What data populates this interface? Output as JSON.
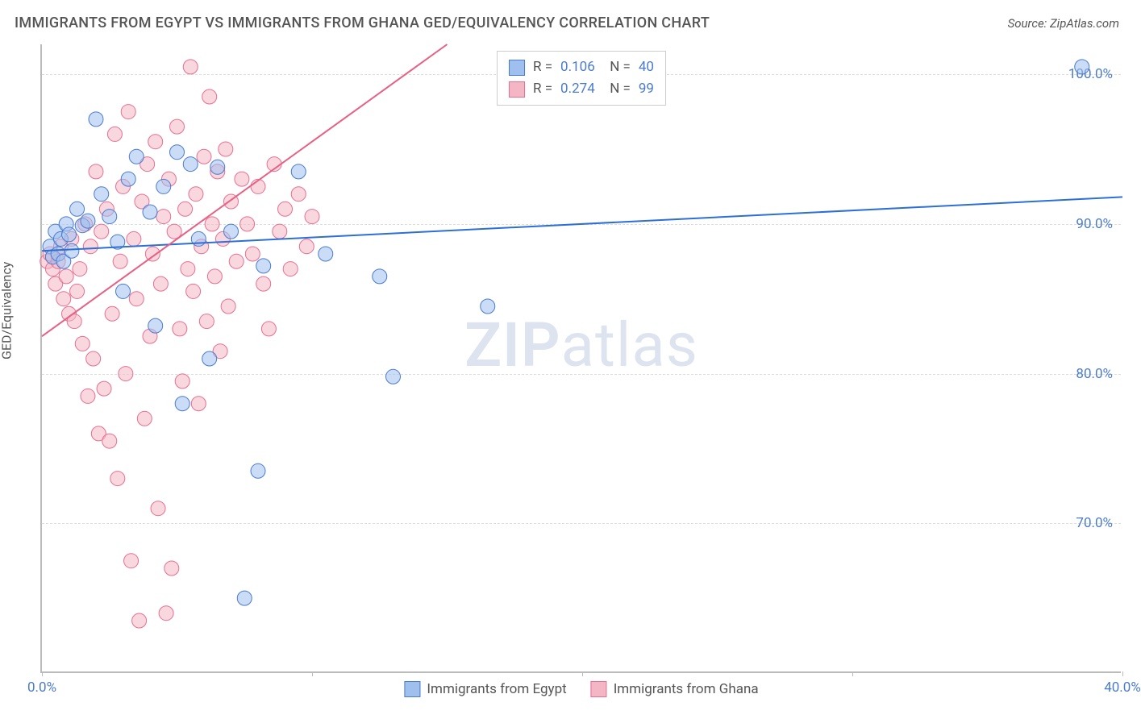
{
  "title": "IMMIGRANTS FROM EGYPT VS IMMIGRANTS FROM GHANA GED/EQUIVALENCY CORRELATION CHART",
  "source": "Source: ZipAtlas.com",
  "watermark_parts": [
    "ZIP",
    "atlas"
  ],
  "chart": {
    "type": "scatter",
    "y_axis_label": "GED/Equivalency",
    "background_color": "#ffffff",
    "grid_color": "#dddddd",
    "axis_color": "#bbbbbb",
    "tick_label_color": "#4a7bd0",
    "xlim": [
      0,
      40
    ],
    "ylim": [
      60,
      102
    ],
    "y_ticks": [
      70,
      80,
      90,
      100
    ],
    "y_tick_labels": [
      "70.0%",
      "80.0%",
      "90.0%",
      "100.0%"
    ],
    "x_ticks": [
      0,
      40
    ],
    "x_tick_labels": [
      "0.0%",
      "40.0%"
    ],
    "x_tick_marks": [
      0,
      10,
      20,
      30,
      40
    ],
    "marker_radius": 9,
    "marker_opacity": 0.55,
    "line_width": 2,
    "series": [
      {
        "name": "Immigrants from Egypt",
        "color_fill": "#9fc0ef",
        "color_stroke": "#4a7bd0",
        "line_color": "#2e6fd6",
        "R": "0.106",
        "N": "40",
        "trend": {
          "x1": 0,
          "y1": 88.2,
          "x2": 40,
          "y2": 91.8
        },
        "points": [
          [
            0.3,
            88.5
          ],
          [
            0.4,
            87.8
          ],
          [
            0.5,
            89.5
          ],
          [
            0.6,
            88.0
          ],
          [
            0.7,
            89.0
          ],
          [
            0.8,
            87.5
          ],
          [
            0.9,
            90.0
          ],
          [
            1.0,
            89.3
          ],
          [
            1.1,
            88.2
          ],
          [
            1.3,
            91.0
          ],
          [
            1.5,
            89.9
          ],
          [
            1.7,
            90.2
          ],
          [
            2.0,
            97.0
          ],
          [
            2.2,
            92.0
          ],
          [
            2.5,
            90.5
          ],
          [
            2.8,
            88.8
          ],
          [
            3.0,
            85.5
          ],
          [
            3.2,
            93.0
          ],
          [
            3.5,
            94.5
          ],
          [
            4.0,
            90.8
          ],
          [
            4.2,
            83.2
          ],
          [
            4.5,
            92.5
          ],
          [
            5.0,
            94.8
          ],
          [
            5.2,
            78.0
          ],
          [
            5.5,
            94.0
          ],
          [
            5.8,
            89.0
          ],
          [
            6.2,
            81.0
          ],
          [
            6.5,
            93.8
          ],
          [
            7.0,
            89.5
          ],
          [
            7.5,
            65.0
          ],
          [
            8.0,
            73.5
          ],
          [
            8.2,
            87.2
          ],
          [
            9.5,
            93.5
          ],
          [
            10.5,
            88.0
          ],
          [
            12.5,
            86.5
          ],
          [
            13.0,
            79.8
          ],
          [
            16.5,
            84.5
          ],
          [
            38.5,
            100.5
          ]
        ]
      },
      {
        "name": "Immigrants from Ghana",
        "color_fill": "#f4b6c5",
        "color_stroke": "#e86f91",
        "line_color": "#e86083",
        "R": "0.274",
        "N": "99",
        "trend": {
          "x1": 0,
          "y1": 82.5,
          "x2": 15.0,
          "y2": 102.0
        },
        "points": [
          [
            0.2,
            87.5
          ],
          [
            0.3,
            88.0
          ],
          [
            0.4,
            87.0
          ],
          [
            0.5,
            86.0
          ],
          [
            0.6,
            87.5
          ],
          [
            0.7,
            88.5
          ],
          [
            0.8,
            85.0
          ],
          [
            0.9,
            86.5
          ],
          [
            1.0,
            84.0
          ],
          [
            1.1,
            89.0
          ],
          [
            1.2,
            83.5
          ],
          [
            1.3,
            85.5
          ],
          [
            1.4,
            87.0
          ],
          [
            1.5,
            82.0
          ],
          [
            1.6,
            90.0
          ],
          [
            1.7,
            78.5
          ],
          [
            1.8,
            88.5
          ],
          [
            1.9,
            81.0
          ],
          [
            2.0,
            93.5
          ],
          [
            2.1,
            76.0
          ],
          [
            2.2,
            89.5
          ],
          [
            2.3,
            79.0
          ],
          [
            2.4,
            91.0
          ],
          [
            2.5,
            75.5
          ],
          [
            2.6,
            84.0
          ],
          [
            2.7,
            96.0
          ],
          [
            2.8,
            73.0
          ],
          [
            2.9,
            87.5
          ],
          [
            3.0,
            92.5
          ],
          [
            3.1,
            80.0
          ],
          [
            3.2,
            97.5
          ],
          [
            3.3,
            67.5
          ],
          [
            3.4,
            89.0
          ],
          [
            3.5,
            85.0
          ],
          [
            3.6,
            63.5
          ],
          [
            3.7,
            91.5
          ],
          [
            3.8,
            77.0
          ],
          [
            3.9,
            94.0
          ],
          [
            4.0,
            82.5
          ],
          [
            4.1,
            88.0
          ],
          [
            4.2,
            95.5
          ],
          [
            4.3,
            71.0
          ],
          [
            4.4,
            86.0
          ],
          [
            4.5,
            90.5
          ],
          [
            4.6,
            64.0
          ],
          [
            4.7,
            93.0
          ],
          [
            4.8,
            67.0
          ],
          [
            4.9,
            89.5
          ],
          [
            5.0,
            96.5
          ],
          [
            5.1,
            83.0
          ],
          [
            5.2,
            79.5
          ],
          [
            5.3,
            91.0
          ],
          [
            5.4,
            87.0
          ],
          [
            5.5,
            100.5
          ],
          [
            5.6,
            85.5
          ],
          [
            5.7,
            92.0
          ],
          [
            5.8,
            78.0
          ],
          [
            5.9,
            88.5
          ],
          [
            6.0,
            94.5
          ],
          [
            6.1,
            83.5
          ],
          [
            6.2,
            98.5
          ],
          [
            6.3,
            90.0
          ],
          [
            6.4,
            86.5
          ],
          [
            6.5,
            93.5
          ],
          [
            6.6,
            81.5
          ],
          [
            6.7,
            89.0
          ],
          [
            6.8,
            95.0
          ],
          [
            6.9,
            84.5
          ],
          [
            7.0,
            91.5
          ],
          [
            7.2,
            87.5
          ],
          [
            7.4,
            93.0
          ],
          [
            7.6,
            90.0
          ],
          [
            7.8,
            88.0
          ],
          [
            8.0,
            92.5
          ],
          [
            8.2,
            86.0
          ],
          [
            8.4,
            83.0
          ],
          [
            8.6,
            94.0
          ],
          [
            8.8,
            89.5
          ],
          [
            9.0,
            91.0
          ],
          [
            9.2,
            87.0
          ],
          [
            9.5,
            92.0
          ],
          [
            9.8,
            88.5
          ],
          [
            10.0,
            90.5
          ]
        ]
      }
    ]
  }
}
